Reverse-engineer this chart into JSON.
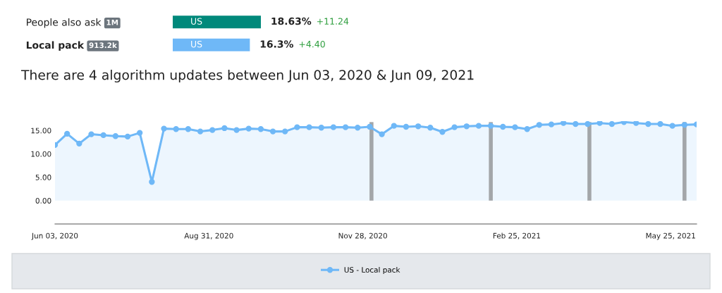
{
  "chart_data": [
    {
      "type": "bar",
      "orientation": "horizontal",
      "categories": [
        "People also ask",
        "Local pack"
      ],
      "values": [
        18.63,
        16.3
      ],
      "colors": [
        "#00897b",
        "#6fb8f7"
      ],
      "value_labels": [
        "18.63%",
        "16.3%"
      ],
      "annotations": [
        "1M",
        "913.2k",
        "US",
        "US",
        "+11.24",
        "+4.40"
      ],
      "tick_labels": "y"
    },
    {
      "type": "area",
      "title": "There are 4 algorithm updates between Jun 03, 2020 & Jun 09, 2021",
      "x": [
        "2020-06-03",
        "2020-06-10",
        "2020-06-17",
        "2020-06-24",
        "2020-07-01",
        "2020-07-08",
        "2020-07-15",
        "2020-07-22",
        "2020-07-29",
        "2020-08-05",
        "2020-08-12",
        "2020-08-19",
        "2020-08-26",
        "2020-09-02",
        "2020-09-09",
        "2020-09-16",
        "2020-09-23",
        "2020-09-30",
        "2020-10-07",
        "2020-10-14",
        "2020-10-21",
        "2020-10-28",
        "2020-11-04",
        "2020-11-11",
        "2020-11-18",
        "2020-11-25",
        "2020-12-02",
        "2020-12-09",
        "2020-12-16",
        "2020-12-23",
        "2020-12-30",
        "2021-01-06",
        "2021-01-13",
        "2021-01-20",
        "2021-01-27",
        "2021-02-03",
        "2021-02-10",
        "2021-02-17",
        "2021-02-24",
        "2021-03-03",
        "2021-03-10",
        "2021-03-17",
        "2021-03-24",
        "2021-03-31",
        "2021-04-07",
        "2021-04-14",
        "2021-04-21",
        "2021-04-28",
        "2021-05-05",
        "2021-05-12",
        "2021-05-19",
        "2021-05-26",
        "2021-06-02",
        "2021-06-09"
      ],
      "series": [
        {
          "name": "US - Local pack",
          "color": "#6fb8f7",
          "values": [
            11.9,
            14.3,
            12.2,
            14.2,
            14.0,
            13.8,
            13.7,
            14.5,
            4.0,
            15.4,
            15.3,
            15.3,
            14.8,
            15.1,
            15.5,
            15.1,
            15.4,
            15.3,
            14.8,
            14.8,
            15.7,
            15.7,
            15.6,
            15.7,
            15.7,
            15.6,
            15.8,
            14.2,
            16.0,
            15.8,
            15.9,
            15.6,
            14.7,
            15.7,
            15.9,
            16.0,
            16.0,
            15.8,
            15.7,
            15.3,
            16.2,
            16.3,
            16.6,
            16.4,
            16.4,
            16.6,
            16.4,
            16.8,
            16.6,
            16.4,
            16.4,
            16.0,
            16.2,
            16.3
          ]
        }
      ],
      "xlim": [
        "2020-06-03",
        "2021-06-09"
      ],
      "xticks": [
        {
          "value": "2020-06-03",
          "label": "Jun 03, 2020"
        },
        {
          "value": "2020-08-31",
          "label": "Aug 31, 2020"
        },
        {
          "value": "2020-11-28",
          "label": "Nov 28, 2020"
        },
        {
          "value": "2021-02-25",
          "label": "Feb 25, 2021"
        },
        {
          "value": "2021-05-25",
          "label": "May 25, 2021"
        }
      ],
      "ylim": [
        -5,
        17
      ],
      "yticks": [
        {
          "value": 0,
          "label": "0.00"
        },
        {
          "value": 5,
          "label": "5.00"
        },
        {
          "value": 10,
          "label": "10.00"
        },
        {
          "value": 15,
          "label": "15.00"
        }
      ],
      "ref_lines": [
        {
          "axis": "x",
          "value": "2020-12-03",
          "color": "#a3a6a9"
        },
        {
          "axis": "x",
          "value": "2021-02-10",
          "color": "#a3a6a9"
        },
        {
          "axis": "x",
          "value": "2021-04-08",
          "color": "#a3a6a9"
        },
        {
          "axis": "x",
          "value": "2021-06-02",
          "color": "#a3a6a9"
        }
      ],
      "marker": "circle",
      "line_style": "solid",
      "grid": false,
      "legend": "bottom"
    }
  ]
}
